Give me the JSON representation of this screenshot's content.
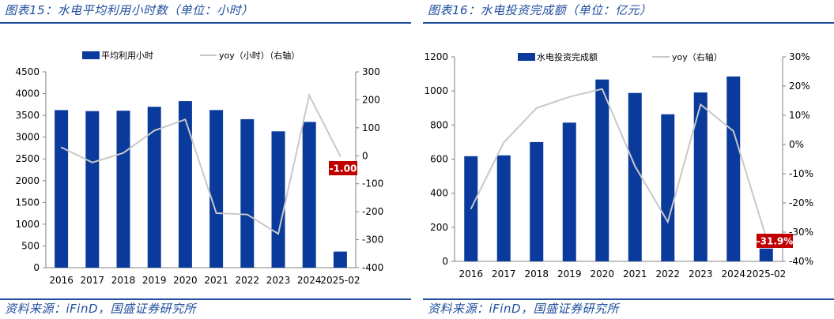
{
  "charts": [
    {
      "figure_title": "图表15：水电平均利用小时数（单位：小时）",
      "source": "资料来源：iFinD，国盛证券研究所",
      "chart_data": {
        "type": "bar",
        "categories": [
          "2016",
          "2017",
          "2018",
          "2019",
          "2020",
          "2021",
          "2022",
          "2023",
          "2024",
          "2025-02"
        ],
        "series": [
          {
            "name": "平均利用小时",
            "type": "bar",
            "axis": "left",
            "values": [
              3621,
              3597,
              3607,
              3697,
              3827,
              3622,
              3412,
              3133,
              3349,
              370
            ]
          },
          {
            "name": "yoy（小时）（右轴）",
            "type": "line",
            "axis": "right",
            "values": [
              30,
              -24,
              10,
              90,
              130,
              -205,
              -210,
              -279,
              216,
              -1
            ]
          }
        ],
        "left_axis": {
          "min": 0,
          "max": 4500,
          "step": 500,
          "ticks": [
            "0",
            "500",
            "1000",
            "1500",
            "2000",
            "2500",
            "3000",
            "3500",
            "4000",
            "4500"
          ]
        },
        "right_axis": {
          "min": -400,
          "max": 300,
          "step": 100,
          "ticks": [
            "-400",
            "-300",
            "-200",
            "-100",
            "0",
            "100",
            "200",
            "300"
          ]
        },
        "annotation": {
          "text": "-1.00",
          "color": "#c00000"
        },
        "legend_position": "top",
        "bar_color": "#0a3a9c",
        "line_color": "#c8c8c8"
      }
    },
    {
      "figure_title": "图表16：水电投资完成额（单位：亿元）",
      "source": "资料来源：iFinD，国盛证券研究所",
      "chart_data": {
        "type": "bar",
        "categories": [
          "2016",
          "2017",
          "2018",
          "2019",
          "2020",
          "2021",
          "2022",
          "2023",
          "2024",
          "2025-02"
        ],
        "series": [
          {
            "name": "水电投资完成额",
            "type": "bar",
            "axis": "left",
            "values": [
              617,
              622,
              700,
              814,
              1067,
              988,
              863,
              991,
              1085,
              75
            ]
          },
          {
            "name": "yoy（右轴）",
            "type": "line",
            "axis": "right",
            "values": [
              -22,
              0.7,
              12.5,
              16.3,
              19,
              -7.4,
              -26.5,
              13.7,
              4.6,
              -31.9
            ]
          }
        ],
        "left_axis": {
          "min": 0,
          "max": 1200,
          "step": 200,
          "ticks": [
            "0",
            "200",
            "400",
            "600",
            "800",
            "1000",
            "1200"
          ]
        },
        "right_axis": {
          "min": -40,
          "max": 30,
          "step": 10,
          "ticks": [
            "-40%",
            "-30%",
            "-20%",
            "-10%",
            "0%",
            "10%",
            "20%",
            "30%"
          ]
        },
        "annotation": {
          "text": "-31.9%",
          "color": "#c00000"
        },
        "legend_position": "top",
        "bar_color": "#0a3a9c",
        "line_color": "#c8c8c8"
      }
    }
  ]
}
